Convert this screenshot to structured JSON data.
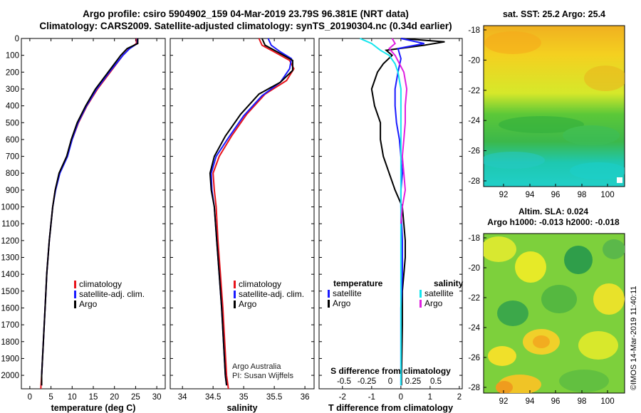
{
  "header": {
    "title_line1": "Argo profile: csiro 5904902_159 04-Mar-2019 23.79S 96.381E (NRT data)",
    "title_line2": "Climatology: CARS2009. Satellite-adjusted climatology: synTS_20190304.nc (0.34d earlier)",
    "credit_line1": "Argo Australia",
    "credit_line2": "PI: Susan Wijffels",
    "side_stamp": "©IMOS 14-Mar-2019 11:40:11"
  },
  "depth_axis": {
    "ticks": [
      0,
      100,
      200,
      300,
      400,
      500,
      600,
      700,
      800,
      900,
      1000,
      1100,
      1200,
      1300,
      1400,
      1500,
      1600,
      1700,
      1800,
      1900,
      2000
    ],
    "range": [
      0,
      2080
    ]
  },
  "chart_data": [
    {
      "id": "temperature-panel",
      "type": "line",
      "xlabel": "temperature (deg C)",
      "xlim": [
        -2,
        32
      ],
      "xticks": [
        0,
        5,
        10,
        15,
        20,
        25,
        30
      ],
      "ylabel": "depth",
      "legend": [
        "climatology",
        "satellite-adj. clim.",
        "Argo"
      ],
      "series": [
        {
          "name": "climatology",
          "color": "#e8141b",
          "points": [
            [
              25.2,
              0
            ],
            [
              25.2,
              30
            ],
            [
              23.5,
              60
            ],
            [
              22,
              100
            ],
            [
              19,
              200
            ],
            [
              16,
              300
            ],
            [
              13.5,
              400
            ],
            [
              11.5,
              500
            ],
            [
              10,
              600
            ],
            [
              8.8,
              700
            ],
            [
              7,
              800
            ],
            [
              6,
              900
            ],
            [
              5.4,
              1000
            ],
            [
              5,
              1100
            ],
            [
              4.6,
              1200
            ],
            [
              4.3,
              1300
            ],
            [
              4,
              1400
            ],
            [
              3.8,
              1500
            ],
            [
              3.6,
              1600
            ],
            [
              3.4,
              1700
            ],
            [
              3.2,
              1800
            ],
            [
              3,
              1900
            ],
            [
              2.8,
              2000
            ],
            [
              2.6,
              2080
            ]
          ]
        },
        {
          "name": "satellite-adj. clim.",
          "color": "#1a1aff",
          "points": [
            [
              25.4,
              0
            ],
            [
              25.4,
              30
            ],
            [
              23.6,
              60
            ],
            [
              22,
              100
            ],
            [
              18.8,
              200
            ],
            [
              15.8,
              300
            ],
            [
              13.4,
              400
            ],
            [
              11.4,
              500
            ],
            [
              10,
              600
            ],
            [
              8.9,
              700
            ],
            [
              7.1,
              800
            ],
            [
              6.1,
              900
            ],
            [
              5.4,
              1000
            ],
            [
              5,
              1100
            ],
            [
              4.6,
              1200
            ],
            [
              4.3,
              1300
            ],
            [
              4,
              1400
            ],
            [
              3.8,
              1500
            ],
            [
              3.6,
              1600
            ],
            [
              3.4,
              1700
            ],
            [
              3.2,
              1800
            ],
            [
              3,
              1900
            ],
            [
              2.8,
              2000
            ],
            [
              2.8,
              2060
            ]
          ]
        },
        {
          "name": "Argo",
          "color": "#000000",
          "points": [
            [
              25.5,
              0
            ],
            [
              25.5,
              30
            ],
            [
              23,
              60
            ],
            [
              21.5,
              100
            ],
            [
              18.5,
              200
            ],
            [
              15.5,
              300
            ],
            [
              13.2,
              400
            ],
            [
              11.2,
              500
            ],
            [
              9.8,
              600
            ],
            [
              8.7,
              700
            ],
            [
              6.9,
              800
            ],
            [
              6,
              900
            ],
            [
              5.4,
              1000
            ],
            [
              5,
              1100
            ],
            [
              4.6,
              1200
            ],
            [
              4.3,
              1300
            ],
            [
              4,
              1400
            ],
            [
              3.8,
              1500
            ],
            [
              3.6,
              1600
            ],
            [
              3.4,
              1700
            ],
            [
              3.2,
              1800
            ],
            [
              3,
              1900
            ],
            [
              2.8,
              2000
            ],
            [
              2.8,
              2060
            ]
          ]
        }
      ]
    },
    {
      "id": "salinity-panel",
      "type": "line",
      "xlabel": "salinity",
      "xlim": [
        33.8,
        36.15
      ],
      "xticks": [
        34,
        34.5,
        35,
        35.5,
        36
      ],
      "ylabel": "depth",
      "legend": [
        "climatology",
        "satellite-adj. clim.",
        "Argo"
      ],
      "series": [
        {
          "name": "climatology",
          "color": "#e8141b",
          "points": [
            [
              35.25,
              0
            ],
            [
              35.3,
              40
            ],
            [
              35.5,
              80
            ],
            [
              35.75,
              130
            ],
            [
              35.82,
              180
            ],
            [
              35.7,
              250
            ],
            [
              35.35,
              330
            ],
            [
              35.05,
              450
            ],
            [
              34.8,
              580
            ],
            [
              34.6,
              700
            ],
            [
              34.5,
              800
            ],
            [
              34.52,
              900
            ],
            [
              34.55,
              1000
            ],
            [
              34.58,
              1200
            ],
            [
              34.62,
              1400
            ],
            [
              34.66,
              1600
            ],
            [
              34.69,
              1800
            ],
            [
              34.72,
              2000
            ],
            [
              34.75,
              2080
            ]
          ]
        },
        {
          "name": "satellite-adj. clim.",
          "color": "#1a1aff",
          "points": [
            [
              35.4,
              0
            ],
            [
              35.45,
              40
            ],
            [
              35.6,
              80
            ],
            [
              35.78,
              120
            ],
            [
              35.75,
              180
            ],
            [
              35.6,
              260
            ],
            [
              35.3,
              340
            ],
            [
              35.0,
              460
            ],
            [
              34.75,
              590
            ],
            [
              34.55,
              700
            ],
            [
              34.47,
              800
            ],
            [
              34.48,
              900
            ],
            [
              34.52,
              1000
            ],
            [
              34.56,
              1200
            ],
            [
              34.6,
              1400
            ],
            [
              34.64,
              1600
            ],
            [
              34.67,
              1800
            ],
            [
              34.7,
              2000
            ],
            [
              34.72,
              2060
            ]
          ]
        },
        {
          "name": "Argo",
          "color": "#000000",
          "points": [
            [
              35.3,
              0
            ],
            [
              35.35,
              40
            ],
            [
              35.55,
              80
            ],
            [
              35.8,
              130
            ],
            [
              35.8,
              190
            ],
            [
              35.6,
              260
            ],
            [
              35.25,
              330
            ],
            [
              34.95,
              450
            ],
            [
              34.7,
              580
            ],
            [
              34.52,
              700
            ],
            [
              34.45,
              800
            ],
            [
              34.47,
              900
            ],
            [
              34.52,
              1000
            ],
            [
              34.56,
              1200
            ],
            [
              34.6,
              1400
            ],
            [
              34.64,
              1600
            ],
            [
              34.67,
              1800
            ],
            [
              34.7,
              2000
            ],
            [
              34.72,
              2060
            ]
          ]
        }
      ]
    },
    {
      "id": "difference-panel",
      "type": "line",
      "xlabel": "T difference from climatology",
      "xlim": [
        -2.8,
        2.1
      ],
      "xticks": [
        -2,
        -1,
        0,
        1,
        2
      ],
      "top_xlabel": "S difference from climatology",
      "top_xticks": [
        "-0.5",
        "-0.25",
        "0",
        "0.25",
        "0.5"
      ],
      "ylabel": "depth",
      "legend_left_title": "temperature",
      "legend_right_title": "salinity",
      "legend_left": [
        "satellite",
        "Argo"
      ],
      "legend_right": [
        "satellite",
        "Argo"
      ],
      "series": [
        {
          "name": "temperature Argo",
          "color": "#000000",
          "points": [
            [
              0,
              0
            ],
            [
              1.5,
              20
            ],
            [
              0.8,
              40
            ],
            [
              -0.5,
              70
            ],
            [
              -0.3,
              100
            ],
            [
              -0.6,
              150
            ],
            [
              -0.8,
              200
            ],
            [
              -1.0,
              300
            ],
            [
              -0.9,
              400
            ],
            [
              -0.7,
              500
            ],
            [
              -0.7,
              600
            ],
            [
              -0.6,
              700
            ],
            [
              -0.4,
              800
            ],
            [
              -0.2,
              900
            ],
            [
              0.05,
              1000
            ],
            [
              0.1,
              1100
            ],
            [
              0.15,
              1200
            ],
            [
              0.15,
              1300
            ],
            [
              0.1,
              1400
            ],
            [
              0.05,
              1500
            ],
            [
              0.05,
              1700
            ],
            [
              0.02,
              2000
            ],
            [
              0.02,
              2060
            ]
          ]
        },
        {
          "name": "temperature satellite",
          "color": "#1a1aff",
          "points": [
            [
              0,
              0
            ],
            [
              0.8,
              30
            ],
            [
              -0.1,
              60
            ],
            [
              0,
              120
            ],
            [
              -0.1,
              200
            ],
            [
              -0.2,
              300
            ],
            [
              -0.2,
              400
            ],
            [
              -0.15,
              500
            ],
            [
              -0.05,
              600
            ],
            [
              0,
              700
            ],
            [
              0.05,
              800
            ],
            [
              0,
              900
            ],
            [
              0,
              1000
            ],
            [
              0.05,
              1200
            ],
            [
              0.05,
              1400
            ],
            [
              0,
              1600
            ],
            [
              0,
              1800
            ],
            [
              0,
              2000
            ],
            [
              0,
              2060
            ]
          ]
        },
        {
          "name": "salinity satellite",
          "color": "#14e6ee",
          "points": [
            [
              -1.4,
              0
            ],
            [
              -1.0,
              30
            ],
            [
              -0.7,
              70
            ],
            [
              -0.4,
              100
            ],
            [
              -0.2,
              150
            ],
            [
              -0.1,
              200
            ],
            [
              0,
              300
            ],
            [
              0,
              500
            ],
            [
              0,
              700
            ],
            [
              0,
              900
            ],
            [
              0,
              1100
            ],
            [
              0,
              1300
            ],
            [
              0,
              1500
            ],
            [
              0,
              1700
            ],
            [
              0,
              1900
            ],
            [
              0,
              2060
            ]
          ]
        },
        {
          "name": "salinity Argo",
          "color": "#e020e0",
          "points": [
            [
              -0.3,
              0
            ],
            [
              -0.2,
              30
            ],
            [
              -0.4,
              60
            ],
            [
              -0.2,
              100
            ],
            [
              0.1,
              200
            ],
            [
              0.2,
              300
            ],
            [
              0.15,
              400
            ],
            [
              0.15,
              500
            ],
            [
              0.1,
              600
            ],
            [
              0.05,
              700
            ],
            [
              0.1,
              800
            ],
            [
              0.15,
              900
            ],
            [
              0.05,
              1000
            ],
            [
              0,
              1100
            ]
          ]
        }
      ]
    }
  ],
  "sst_map": {
    "title": "sat. SST: 25.2 Argo: 25.4",
    "yticks": [
      "-18",
      "-20",
      "-22",
      "-24",
      "-26",
      "-28"
    ],
    "xticks": [
      "92",
      "94",
      "96",
      "98",
      "100"
    ]
  },
  "sla_map": {
    "title_line1": "Altim. SLA: 0.024",
    "title_line2": "Argo h1000: -0.013 h2000: -0.018",
    "yticks": [
      "-18",
      "-20",
      "-22",
      "-24",
      "-26",
      "-28"
    ],
    "xticks": [
      "92",
      "94",
      "96",
      "98",
      "100"
    ]
  },
  "colors": {
    "climatology": "#e8141b",
    "satellite": "#1a1aff",
    "argo": "#000000",
    "salinity_satellite": "#14e6ee",
    "salinity_argo": "#e020e0"
  }
}
